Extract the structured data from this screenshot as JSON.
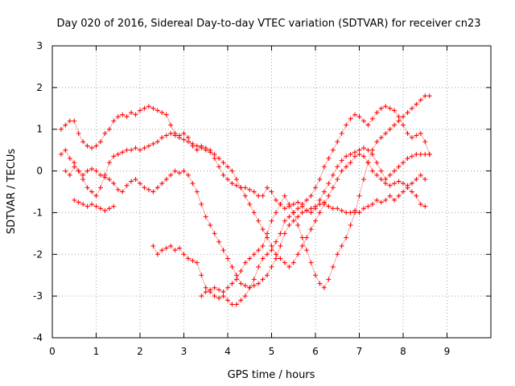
{
  "chart_data": {
    "type": "scatter",
    "title": "Day 020 of 2016, Sidereal Day-to-day VTEC variation (SDTVAR) for receiver cn23",
    "xlabel": "GPS time / hours",
    "ylabel": "SDTVAR / TECUs",
    "xlim": [
      0,
      10
    ],
    "ylim": [
      -4,
      3
    ],
    "x_ticks": [
      0,
      1,
      2,
      3,
      4,
      5,
      6,
      7,
      8,
      9
    ],
    "y_ticks": [
      -4,
      -3,
      -2,
      -1,
      0,
      1,
      2,
      3
    ],
    "grid": true,
    "legend": "none",
    "marker": "plus",
    "color": "#ff0000",
    "series": [
      {
        "x": [
          0.2,
          0.3,
          0.4,
          0.5,
          0.6,
          0.7,
          0.8,
          0.9,
          1.0,
          1.1,
          1.2,
          1.3,
          1.4,
          1.5,
          1.6,
          1.7,
          1.8,
          1.9,
          2.0,
          2.1,
          2.2,
          2.3,
          2.4,
          2.5,
          2.6,
          2.7,
          2.8,
          2.9,
          3.0,
          3.1,
          3.2,
          3.3,
          3.4,
          3.5,
          3.6,
          3.7,
          3.8,
          3.9,
          4.0,
          4.1,
          4.2,
          4.3,
          4.4,
          4.5,
          4.6,
          4.7,
          4.8,
          4.9,
          5.0,
          5.1,
          5.2,
          5.3,
          5.4,
          5.5,
          5.6,
          5.7,
          5.8,
          5.9,
          6.0,
          6.1,
          6.2,
          6.3,
          6.4,
          6.5,
          6.6,
          6.7,
          6.8,
          6.9,
          7.0,
          7.1,
          7.2,
          7.3,
          7.4,
          7.5,
          7.6,
          7.7,
          7.8,
          7.9,
          8.0,
          8.1,
          8.2,
          8.3,
          8.4,
          8.5,
          8.6
        ],
        "y": [
          1.0,
          1.1,
          1.2,
          1.2,
          0.9,
          0.7,
          0.6,
          0.55,
          0.6,
          0.7,
          0.9,
          1.0,
          1.2,
          1.3,
          1.35,
          1.3,
          1.4,
          1.35,
          1.45,
          1.5,
          1.55,
          1.5,
          1.45,
          1.4,
          1.35,
          1.1,
          0.9,
          0.85,
          0.9,
          0.8,
          0.6,
          0.5,
          0.6,
          0.55,
          0.5,
          0.3,
          0.1,
          -0.1,
          -0.2,
          -0.3,
          -0.35,
          -0.4,
          -0.4,
          -0.45,
          -0.5,
          -0.6,
          -0.6,
          -0.4,
          -0.5,
          -0.7,
          -0.8,
          -0.9,
          -0.85,
          -0.8,
          -0.75,
          -0.8,
          -0.7,
          -0.6,
          -0.4,
          -0.2,
          0.1,
          0.3,
          0.5,
          0.7,
          0.9,
          1.1,
          1.25,
          1.35,
          1.3,
          1.2,
          1.1,
          1.25,
          1.4,
          1.5,
          1.55,
          1.5,
          1.45,
          1.3,
          1.1,
          0.9,
          0.8,
          0.85,
          0.9,
          0.7,
          0.4
        ]
      },
      {
        "x": [
          0.2,
          0.3,
          0.4,
          0.5,
          0.6,
          0.7,
          0.8,
          0.9,
          1.0,
          1.1,
          1.2,
          1.3,
          1.4,
          1.5,
          1.6,
          1.7,
          1.8,
          1.9,
          2.0,
          2.1,
          2.2,
          2.3,
          2.4,
          2.5,
          2.6,
          2.7,
          2.8,
          2.9,
          3.0,
          3.1,
          3.2,
          3.3,
          3.4,
          3.5,
          3.6,
          3.7,
          3.8,
          3.9,
          4.0,
          4.1,
          4.2,
          4.3,
          4.4,
          4.5,
          4.6,
          4.7,
          4.8,
          4.9,
          5.0,
          5.1,
          5.2,
          5.3,
          5.4,
          5.5,
          5.6,
          5.7,
          5.8,
          5.9,
          6.0,
          6.1,
          6.2,
          6.3,
          6.4,
          6.5,
          6.6,
          6.7,
          6.8,
          6.9,
          7.0,
          7.1,
          7.2,
          7.3,
          7.4,
          7.5,
          7.6,
          7.7,
          7.8,
          7.9,
          8.0,
          8.1,
          8.2,
          8.3,
          8.4,
          8.5
        ],
        "y": [
          0.4,
          0.5,
          0.3,
          0.2,
          0.0,
          -0.2,
          -0.4,
          -0.5,
          -0.6,
          -0.4,
          -0.1,
          0.2,
          0.35,
          0.4,
          0.45,
          0.5,
          0.5,
          0.55,
          0.5,
          0.55,
          0.6,
          0.65,
          0.7,
          0.8,
          0.85,
          0.9,
          0.85,
          0.8,
          0.75,
          0.7,
          0.65,
          0.6,
          0.55,
          0.5,
          0.45,
          0.4,
          0.3,
          0.2,
          0.1,
          0.0,
          -0.2,
          -0.4,
          -0.6,
          -0.8,
          -1.0,
          -1.2,
          -1.4,
          -1.6,
          -1.8,
          -2.0,
          -2.1,
          -2.2,
          -2.3,
          -2.2,
          -2.0,
          -1.8,
          -1.6,
          -1.4,
          -1.2,
          -1.0,
          -0.8,
          -0.6,
          -0.4,
          -0.2,
          0.0,
          0.1,
          0.2,
          0.35,
          0.4,
          0.35,
          0.2,
          0.0,
          -0.1,
          -0.2,
          -0.3,
          -0.35,
          -0.3,
          -0.25,
          -0.3,
          -0.35,
          -0.3,
          -0.2,
          -0.1,
          -0.2
        ]
      },
      {
        "x": [
          0.3,
          0.4,
          0.5,
          0.6,
          0.7,
          0.8,
          0.9,
          1.0,
          1.1,
          1.2,
          1.3,
          1.4,
          1.5,
          1.6,
          1.7,
          1.8,
          1.9,
          2.0,
          2.1,
          2.2,
          2.3,
          2.4,
          2.5,
          2.6,
          2.7,
          2.8,
          2.9,
          3.0,
          3.1,
          3.2,
          3.3,
          3.4,
          3.5,
          3.6,
          3.7,
          3.8,
          3.9,
          4.0,
          4.1,
          4.2,
          4.3,
          4.4,
          4.5,
          4.6,
          4.7,
          4.8,
          4.9,
          5.0,
          5.1,
          5.2,
          5.3,
          5.4,
          5.5,
          5.6,
          5.7,
          5.8,
          5.9,
          6.0,
          6.1,
          6.2,
          6.3,
          6.4,
          6.5,
          6.6,
          6.7,
          6.8,
          6.9,
          7.0,
          7.1,
          7.2,
          7.3,
          7.4,
          7.5,
          7.6,
          7.7,
          7.8,
          7.9,
          8.0,
          8.1,
          8.2,
          8.3,
          8.4,
          8.5
        ],
        "y": [
          0.0,
          -0.1,
          0.1,
          0.0,
          -0.1,
          0.0,
          0.05,
          0.0,
          -0.1,
          -0.15,
          -0.2,
          -0.3,
          -0.45,
          -0.5,
          -0.35,
          -0.25,
          -0.2,
          -0.3,
          -0.4,
          -0.45,
          -0.5,
          -0.4,
          -0.3,
          -0.2,
          -0.1,
          0.0,
          -0.05,
          0.0,
          -0.1,
          -0.3,
          -0.5,
          -0.8,
          -1.1,
          -1.3,
          -1.5,
          -1.7,
          -1.9,
          -2.1,
          -2.3,
          -2.5,
          -2.7,
          -2.75,
          -2.8,
          -2.75,
          -2.7,
          -2.6,
          -2.5,
          -2.3,
          -2.1,
          -1.8,
          -1.5,
          -1.3,
          -1.2,
          -1.1,
          -1.0,
          -0.95,
          -0.9,
          -0.85,
          -0.8,
          -0.75,
          -0.85,
          -0.9,
          -0.9,
          -0.95,
          -1.0,
          -1.0,
          -0.95,
          -1.0,
          -0.9,
          -0.85,
          -0.8,
          -0.7,
          -0.75,
          -0.7,
          -0.6,
          -0.7,
          -0.6,
          -0.5,
          -0.4,
          -0.5,
          -0.6,
          -0.8,
          -0.85
        ]
      },
      {
        "x": [
          0.5,
          0.6,
          0.7,
          0.8,
          0.9,
          1.0,
          1.1,
          1.2,
          1.3,
          1.4
        ],
        "y": [
          -0.7,
          -0.75,
          -0.8,
          -0.85,
          -0.8,
          -0.85,
          -0.9,
          -0.95,
          -0.9,
          -0.85
        ]
      },
      {
        "x": [
          2.3,
          2.4,
          2.5,
          2.6,
          2.7,
          2.8,
          2.9,
          3.0,
          3.1,
          3.2,
          3.3,
          3.4,
          3.5,
          3.6,
          3.7,
          3.8,
          3.9,
          4.0,
          4.1,
          4.2,
          4.3,
          4.4,
          4.5,
          4.6,
          4.7,
          4.8,
          4.9,
          5.0,
          5.1,
          5.2,
          5.3,
          5.4,
          5.5,
          5.6,
          5.7,
          5.8,
          5.9,
          6.0,
          6.1,
          6.2,
          6.3,
          6.4,
          6.5,
          6.6,
          6.7,
          6.8,
          6.9,
          7.0,
          7.1,
          7.2,
          7.3,
          7.4,
          7.5,
          7.6,
          7.7,
          7.8,
          7.9,
          8.0,
          8.1,
          8.2,
          8.3,
          8.4,
          8.5,
          8.6
        ],
        "y": [
          -1.8,
          -2.0,
          -1.9,
          -1.85,
          -1.8,
          -1.9,
          -1.85,
          -2.0,
          -2.1,
          -2.15,
          -2.2,
          -2.5,
          -2.8,
          -2.9,
          -3.0,
          -3.05,
          -3.0,
          -3.1,
          -3.2,
          -3.2,
          -3.1,
          -3.0,
          -2.8,
          -2.6,
          -2.3,
          -2.1,
          -2.0,
          -1.9,
          -1.7,
          -1.5,
          -1.2,
          -1.1,
          -1.0,
          -0.9,
          -0.85,
          -0.95,
          -1.0,
          -0.9,
          -0.7,
          -0.5,
          -0.3,
          -0.1,
          0.1,
          0.25,
          0.35,
          0.4,
          0.45,
          0.5,
          0.55,
          0.5,
          0.4,
          0.2,
          0.0,
          -0.2,
          -0.1,
          0.0,
          0.1,
          0.2,
          0.3,
          0.35,
          0.4,
          0.4,
          0.4,
          0.4
        ]
      },
      {
        "x": [
          3.4,
          3.5,
          3.6,
          3.7,
          3.8,
          3.9,
          4.0,
          4.1,
          4.2,
          4.3,
          4.4,
          4.5,
          4.6,
          4.7,
          4.8,
          4.9,
          5.0,
          5.1,
          5.2,
          5.3,
          5.4,
          5.5,
          5.6,
          5.7,
          5.8,
          5.9,
          6.0,
          6.1,
          6.2,
          6.3,
          6.4,
          6.5,
          6.6,
          6.7,
          6.8,
          6.9,
          7.0,
          7.1,
          7.2,
          7.3,
          7.4,
          7.5,
          7.6,
          7.7,
          7.8,
          7.9,
          8.0,
          8.1,
          8.2,
          8.3,
          8.4,
          8.5,
          8.6
        ],
        "y": [
          -3.0,
          -2.9,
          -2.85,
          -2.8,
          -2.85,
          -2.9,
          -2.8,
          -2.7,
          -2.6,
          -2.4,
          -2.2,
          -2.1,
          -2.0,
          -1.9,
          -1.8,
          -1.5,
          -1.2,
          -1.0,
          -0.8,
          -0.6,
          -0.8,
          -1.0,
          -1.3,
          -1.6,
          -1.9,
          -2.2,
          -2.5,
          -2.7,
          -2.8,
          -2.6,
          -2.3,
          -2.0,
          -1.8,
          -1.6,
          -1.3,
          -1.0,
          -0.6,
          -0.2,
          0.2,
          0.5,
          0.7,
          0.8,
          0.9,
          1.0,
          1.1,
          1.2,
          1.3,
          1.4,
          1.5,
          1.6,
          1.7,
          1.8,
          1.8
        ]
      }
    ],
    "annotations": []
  }
}
